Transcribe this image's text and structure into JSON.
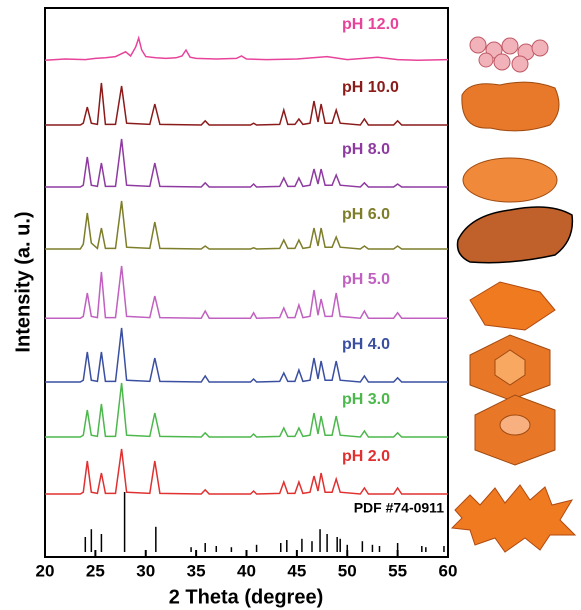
{
  "chart_data": {
    "type": "line",
    "xlabel": "2 Theta (degree)",
    "ylabel": "Intensity (a. u.)",
    "xlim": [
      20,
      60
    ],
    "xticks": [
      20,
      25,
      30,
      35,
      40,
      45,
      50,
      55,
      60
    ],
    "ylim": [
      0,
      100
    ],
    "x": [
      20,
      21,
      23.5,
      23.8,
      24.2,
      24.6,
      25.2,
      25.6,
      26.0,
      27.0,
      27.6,
      28.1,
      30.4,
      30.9,
      31.4,
      35.5,
      35.9,
      36.3,
      40.4,
      40.7,
      41.0,
      43.3,
      43.7,
      44.1,
      44.8,
      45.2,
      45.6,
      46.3,
      46.7,
      47.1,
      47.4,
      47.8,
      48.5,
      48.9,
      49.3,
      51.3,
      51.7,
      52.1,
      54.6,
      55.0,
      55.4,
      60
    ],
    "series": [
      {
        "name": "pH 12.0",
        "color": "#e8439a",
        "x": [
          20,
          22,
          24,
          25,
          26,
          27,
          27.5,
          28,
          28.5,
          29,
          29.3,
          29.6,
          30,
          31,
          32,
          33,
          33.6,
          34,
          34.4,
          35,
          37,
          39,
          39.5,
          40,
          42,
          45,
          48,
          50,
          53,
          55,
          57,
          60
        ],
        "values": [
          8,
          10,
          9,
          11,
          12,
          14,
          18,
          22,
          15,
          30,
          45,
          25,
          14,
          12,
          11,
          12,
          15,
          25,
          13,
          11,
          10,
          11,
          15,
          10,
          9,
          10,
          14,
          9,
          13,
          9,
          8,
          9
        ]
      },
      {
        "name": "pH 10.0",
        "color": "#8b1a1a",
        "values": [
          5,
          5,
          5,
          8,
          35,
          8,
          6,
          75,
          6,
          6,
          70,
          8,
          6,
          40,
          6,
          5,
          12,
          5,
          5,
          8,
          5,
          6,
          30,
          6,
          6,
          15,
          6,
          8,
          45,
          10,
          40,
          8,
          8,
          30,
          8,
          5,
          15,
          5,
          5,
          12,
          5,
          5
        ]
      },
      {
        "name": "pH 8.0",
        "color": "#8e3aa0",
        "values": [
          5,
          5,
          5,
          8,
          55,
          8,
          6,
          45,
          6,
          6,
          85,
          8,
          6,
          45,
          6,
          5,
          12,
          5,
          5,
          10,
          5,
          6,
          20,
          6,
          6,
          20,
          6,
          8,
          35,
          10,
          35,
          8,
          8,
          25,
          8,
          5,
          12,
          5,
          5,
          10,
          5,
          5
        ]
      },
      {
        "name": "pH 6.0",
        "color": "#7d7d2a",
        "values": [
          10,
          10,
          10,
          18,
          70,
          20,
          11,
          45,
          11,
          11,
          90,
          13,
          11,
          55,
          11,
          10,
          15,
          10,
          10,
          12,
          10,
          11,
          25,
          11,
          11,
          25,
          11,
          13,
          45,
          15,
          45,
          13,
          13,
          30,
          13,
          10,
          15,
          10,
          10,
          15,
          10,
          10
        ]
      },
      {
        "name": "pH 5.0",
        "color": "#c060c0",
        "values": [
          3,
          3,
          3,
          6,
          45,
          6,
          4,
          80,
          4,
          4,
          90,
          6,
          4,
          40,
          4,
          3,
          15,
          3,
          3,
          12,
          3,
          4,
          20,
          4,
          4,
          25,
          4,
          6,
          50,
          8,
          35,
          6,
          6,
          45,
          6,
          3,
          15,
          3,
          3,
          12,
          3,
          3
        ]
      },
      {
        "name": "pH 4.0",
        "color": "#3a4fa0",
        "values": [
          5,
          5,
          5,
          8,
          55,
          8,
          6,
          55,
          6,
          6,
          95,
          8,
          6,
          45,
          6,
          5,
          15,
          5,
          5,
          10,
          5,
          6,
          20,
          6,
          6,
          25,
          6,
          8,
          45,
          10,
          40,
          8,
          8,
          40,
          8,
          5,
          15,
          5,
          5,
          12,
          5,
          5
        ]
      },
      {
        "name": "pH 3.0",
        "color": "#4cb84c",
        "values": [
          5,
          5,
          5,
          8,
          50,
          8,
          6,
          60,
          6,
          6,
          95,
          8,
          6,
          45,
          6,
          5,
          12,
          5,
          5,
          10,
          5,
          6,
          20,
          6,
          6,
          20,
          6,
          8,
          45,
          10,
          40,
          8,
          8,
          40,
          8,
          5,
          15,
          5,
          5,
          12,
          5,
          5
        ]
      },
      {
        "name": "pH 2.0",
        "color": "#e03030",
        "values": [
          5,
          5,
          5,
          8,
          60,
          8,
          6,
          40,
          6,
          6,
          80,
          8,
          6,
          60,
          6,
          5,
          12,
          5,
          5,
          10,
          5,
          6,
          25,
          6,
          6,
          25,
          6,
          8,
          35,
          10,
          40,
          8,
          8,
          30,
          8,
          5,
          15,
          5,
          5,
          15,
          5,
          5
        ]
      }
    ],
    "reference": {
      "name": "PDF #74-0911",
      "color": "#000000",
      "x": [
        24.0,
        24.6,
        25.6,
        27.9,
        31.0,
        34.5,
        35.9,
        37.0,
        38.5,
        41.0,
        43.4,
        44.0,
        45.5,
        46.5,
        47.3,
        48.0,
        49.0,
        49.3,
        50.0,
        51.5,
        52.5,
        53.2,
        55.0,
        57.4,
        57.8,
        59.6
      ],
      "values": [
        25,
        38,
        30,
        100,
        42,
        8,
        15,
        10,
        8,
        12,
        15,
        20,
        22,
        18,
        38,
        30,
        25,
        22,
        12,
        18,
        12,
        10,
        15,
        10,
        8,
        10
      ]
    }
  }
}
